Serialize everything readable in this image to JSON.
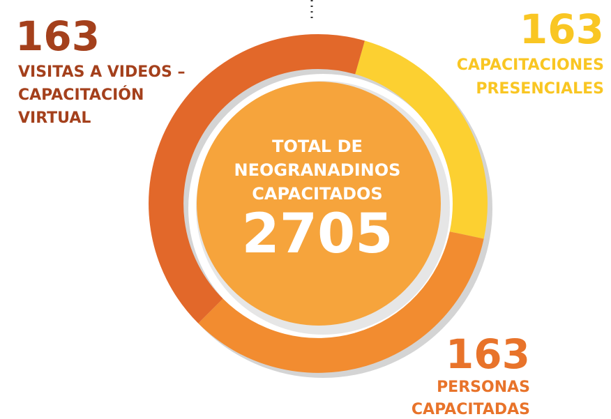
{
  "left": {
    "value": "163",
    "lines": [
      "VISITAS A VIDEOS –",
      "CAPACITACIÓN",
      "VIRTUAL"
    ]
  },
  "right": {
    "value": "163",
    "lines": [
      "CAPACITACIONES",
      "PRESENCIALES"
    ]
  },
  "bottom": {
    "value": "163",
    "lines": [
      "PERSONAS",
      "CAPACITADAS"
    ]
  },
  "center": {
    "lines": [
      "TOTAL DE",
      "NEOGRANADINOS",
      "CAPACITADOS"
    ],
    "total": "2705"
  }
}
